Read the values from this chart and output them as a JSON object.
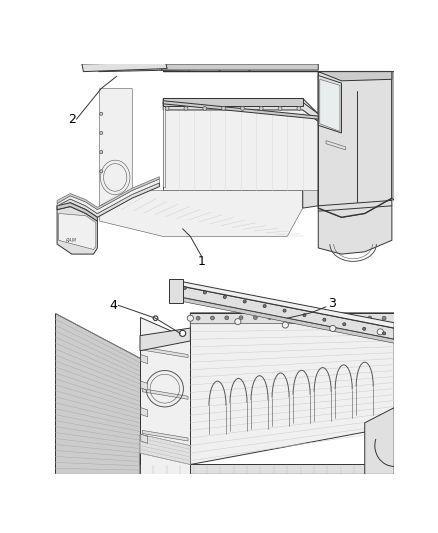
{
  "bg_color": "#ffffff",
  "line_color": "#555555",
  "dark_line": "#333333",
  "light_line": "#999999",
  "fill_white": "#ffffff",
  "fill_light": "#f0f0f0",
  "fill_med": "#e0e0e0",
  "fill_dark": "#cccccc",
  "fill_darkest": "#b0b0b0",
  "label_fontsize": 9,
  "lw_main": 0.7,
  "lw_thin": 0.4,
  "lw_thick": 1.0
}
